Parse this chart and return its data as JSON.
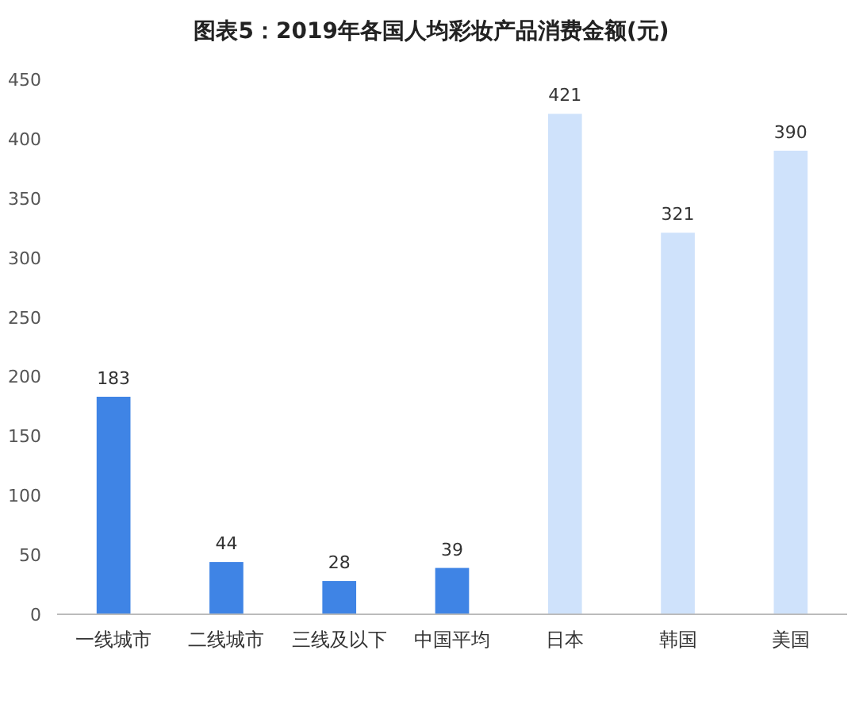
{
  "chart_data": {
    "type": "bar",
    "title": "图表5：2019年各国人均彩妆产品消费金额(元)",
    "categories": [
      "一线城市",
      "二线城市",
      "三线及以下",
      "中国平均",
      "日本",
      "韩国",
      "美国"
    ],
    "values": [
      183,
      44,
      28,
      39,
      421,
      321,
      390
    ],
    "colors": [
      "#3f84e5",
      "#3f84e5",
      "#3f84e5",
      "#3f84e5",
      "#cfe2fb",
      "#cfe2fb",
      "#cfe2fb"
    ],
    "ylim": [
      0,
      450
    ],
    "yticks": [
      0,
      50,
      100,
      150,
      200,
      250,
      300,
      350,
      400,
      450
    ],
    "grid": false,
    "data_labels": true
  }
}
